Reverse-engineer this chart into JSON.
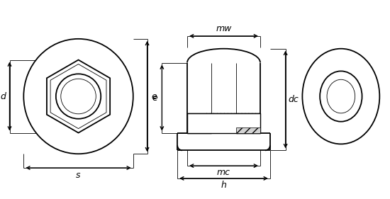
{
  "bg_color": "#ffffff",
  "line_color": "#000000",
  "fig_width": 5.5,
  "fig_height": 2.81,
  "dpi": 100,
  "labels": {
    "d": "d",
    "s": "s",
    "e": "e",
    "mw": "mw",
    "mc": "mc",
    "h": "h",
    "dc": "dc"
  },
  "font_size": 9,
  "lw": 1.0,
  "lw_thick": 1.3,
  "lw_thin": 0.6
}
